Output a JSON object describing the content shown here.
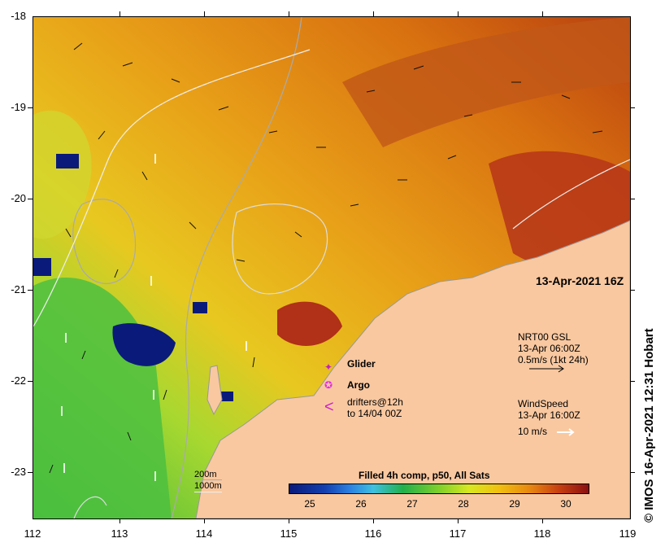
{
  "map": {
    "date_label": "13-Apr-2021 16Z",
    "y_ticks": [
      "-18",
      "-19",
      "-20",
      "-21",
      "-22",
      "-23"
    ],
    "x_ticks": [
      "112",
      "113",
      "114",
      "115",
      "116",
      "117",
      "118",
      "119"
    ],
    "credit": "© IMOS 16-Apr-2021 12:31 Hobart",
    "legend": {
      "glider": "Glider",
      "argo": "Argo",
      "drifters_line1": "drifters@12h",
      "drifters_line2": "to 14/04 00Z",
      "current_title": "NRT00 GSL",
      "current_time": "13-Apr 06:00Z",
      "current_scale": "0.5m/s (1kt 24h)",
      "wind_title": "WindSpeed",
      "wind_time": "13-Apr 16:00Z",
      "wind_scale": "10 m/s"
    },
    "bathymetry": {
      "contour_200": "200m",
      "contour_1000": "1000m"
    },
    "colorbar": {
      "title": "Filled 4h comp, p50, All Sats",
      "ticks": [
        "25",
        "26",
        "27",
        "28",
        "29",
        "30"
      ]
    },
    "colors": {
      "land": "#f9c8a0",
      "glider_marker": "#c020c0",
      "argo_marker": "#e030e0",
      "drifter_marker": "#d020d0"
    }
  }
}
